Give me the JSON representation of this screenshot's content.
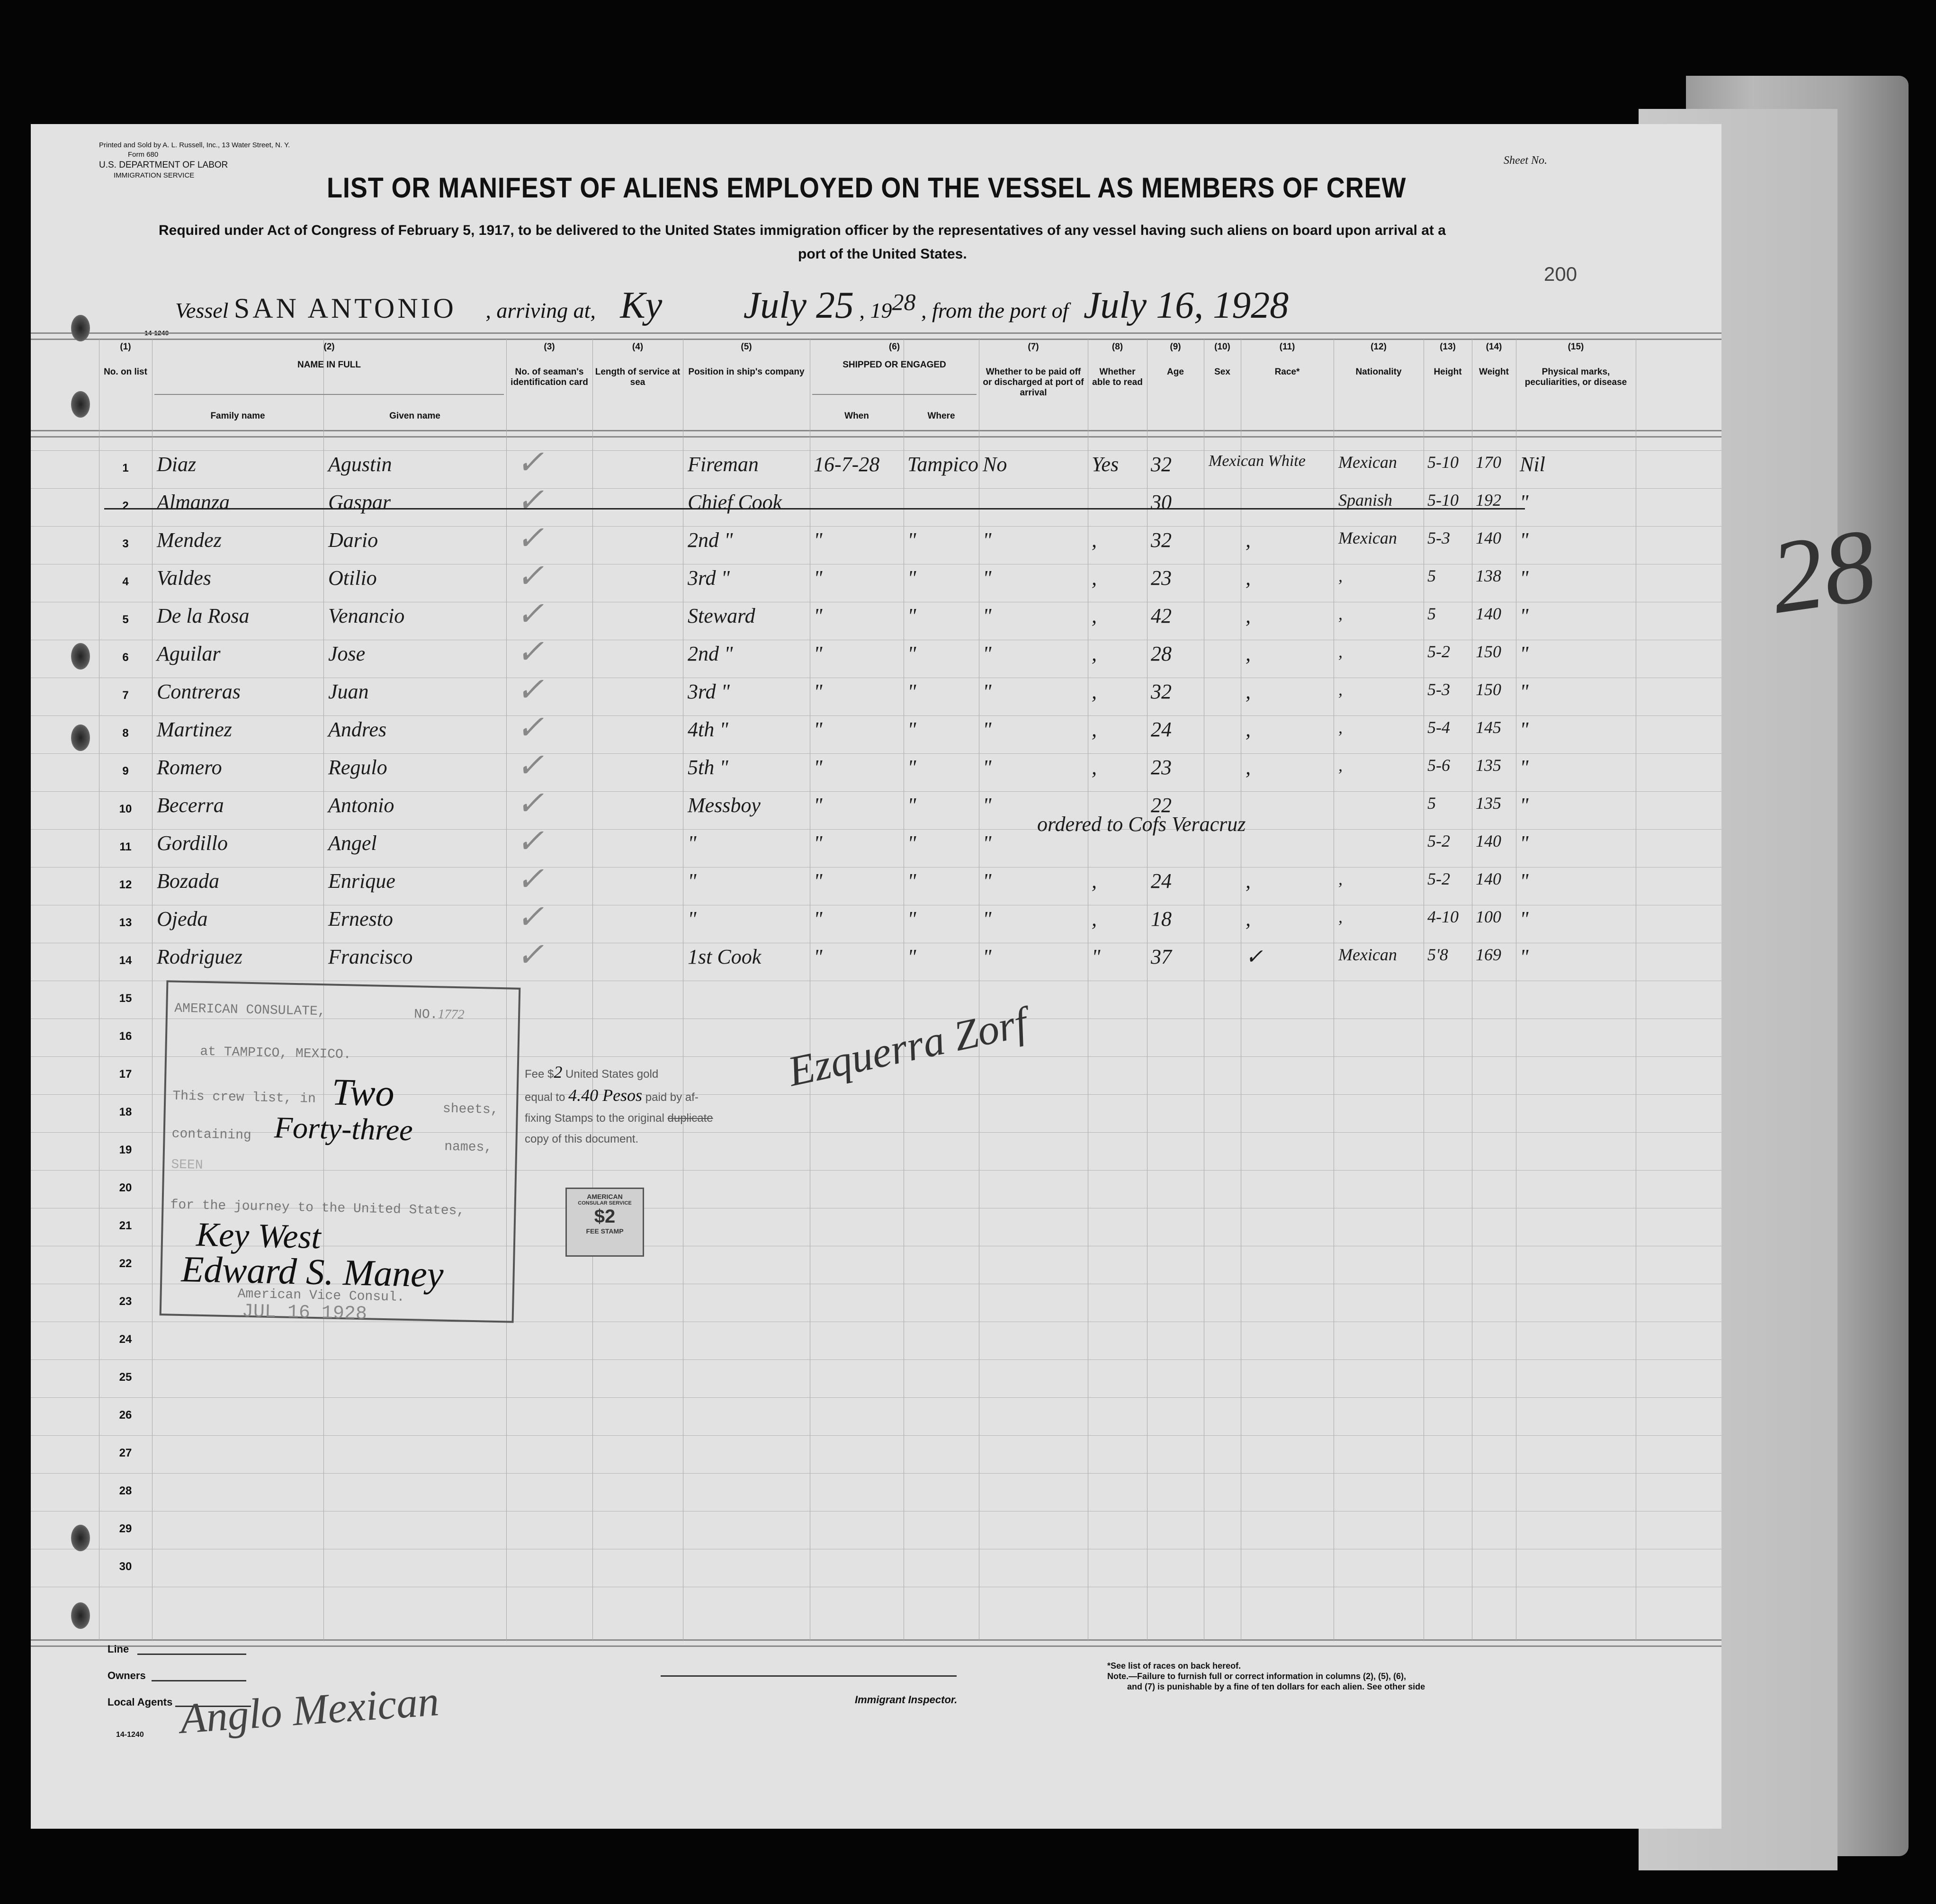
{
  "header": {
    "printer": "Printed and Sold by A. L. Russell, Inc., 13 Water Street, N. Y.",
    "form": "Form 680",
    "department": "U.S. DEPARTMENT OF LABOR",
    "service": "IMMIGRATION SERVICE",
    "sheet_label": "Sheet No.",
    "title": "LIST OR MANIFEST OF ALIENS EMPLOYED ON THE VESSEL AS MEMBERS OF CREW",
    "subtitle_1": "Required under Act of Congress of February 5, 1917, to be delivered to the United States immigration officer by the representatives of any vessel having such aliens on board upon arrival at a",
    "subtitle_2": "port of the United States.",
    "page_number": "200",
    "form_code": "14-1240"
  },
  "vessel_line": {
    "vessel_label": "Vessel",
    "vessel": "SAN ANTONIO",
    "arriving_label": ", arriving at,",
    "arriving_at": "Ky",
    "date": "July 25",
    "year_prefix": ", 19",
    "year": "28",
    "from_label": ", from the port of",
    "from_port": "July 16, 1928"
  },
  "columns": [
    {
      "n": "(1)",
      "label": "No. on list"
    },
    {
      "n": "(2)",
      "label": "NAME IN FULL",
      "sub": [
        "Family name",
        "Given name"
      ]
    },
    {
      "n": "(3)",
      "label": "No. of seaman's identification card"
    },
    {
      "n": "(4)",
      "label": "Length of service at sea"
    },
    {
      "n": "(5)",
      "label": "Position in ship's company"
    },
    {
      "n": "(6)",
      "label": "SHIPPED OR ENGAGED",
      "sub": [
        "When",
        "Where"
      ]
    },
    {
      "n": "(7)",
      "label": "Whether to be paid off or discharged at port of arrival"
    },
    {
      "n": "(8)",
      "label": "Whether able to read"
    },
    {
      "n": "(9)",
      "label": "Age"
    },
    {
      "n": "(10)",
      "label": "Sex"
    },
    {
      "n": "(11)",
      "label": "Race*"
    },
    {
      "n": "(12)",
      "label": "Nationality"
    },
    {
      "n": "(13)",
      "label": "Height"
    },
    {
      "n": "(14)",
      "label": "Weight"
    },
    {
      "n": "(15)",
      "label": "Physical marks, peculiarities, or disease"
    }
  ],
  "crew": [
    {
      "no": "1",
      "family": "Diaz",
      "given": "Agustin",
      "position": "Fireman",
      "when": "16-7-28",
      "where": "Tampico",
      "paid_off": "No",
      "read": "Yes",
      "age": "32",
      "race": "Mexican White",
      "nationality": "Mexican",
      "height": "5-10",
      "weight": "170",
      "marks": "Nil"
    },
    {
      "no": "2",
      "family": "Almanza",
      "given": "Gaspar",
      "position": "Chief Cook",
      "when": "",
      "where": "",
      "paid_off": "",
      "read": "",
      "age": "30",
      "race": "",
      "nationality": "Spanish",
      "height": "5-10",
      "weight": "192",
      "marks": "\"",
      "struck": true
    },
    {
      "no": "3",
      "family": "Mendez",
      "given": "Dario",
      "position": "2nd \"",
      "when": "\"",
      "where": "\"",
      "paid_off": "\"",
      "read": ",",
      "age": "32",
      "race": ",",
      "nationality": "Mexican",
      "height": "5-3",
      "weight": "140",
      "marks": "\""
    },
    {
      "no": "4",
      "family": "Valdes",
      "given": "Otilio",
      "position": "3rd \"",
      "when": "\"",
      "where": "\"",
      "paid_off": "\"",
      "read": ",",
      "age": "23",
      "race": ",",
      "nationality": ",",
      "height": "5",
      "weight": "138",
      "marks": "\""
    },
    {
      "no": "5",
      "family": "De la Rosa",
      "given": "Venancio",
      "position": "Steward",
      "when": "\"",
      "where": "\"",
      "paid_off": "\"",
      "read": ",",
      "age": "42",
      "race": ",",
      "nationality": ",",
      "height": "5",
      "weight": "140",
      "marks": "\""
    },
    {
      "no": "6",
      "family": "Aguilar",
      "given": "Jose",
      "position": "2nd \"",
      "when": "\"",
      "where": "\"",
      "paid_off": "\"",
      "read": ",",
      "age": "28",
      "race": ",",
      "nationality": ",",
      "height": "5-2",
      "weight": "150",
      "marks": "\""
    },
    {
      "no": "7",
      "family": "Contreras",
      "given": "Juan",
      "position": "3rd \"",
      "when": "\"",
      "where": "\"",
      "paid_off": "\"",
      "read": ",",
      "age": "32",
      "race": ",",
      "nationality": ",",
      "height": "5-3",
      "weight": "150",
      "marks": "\""
    },
    {
      "no": "8",
      "family": "Martinez",
      "given": "Andres",
      "position": "4th \"",
      "when": "\"",
      "where": "\"",
      "paid_off": "\"",
      "read": ",",
      "age": "24",
      "race": ",",
      "nationality": ",",
      "height": "5-4",
      "weight": "145",
      "marks": "\""
    },
    {
      "no": "9",
      "family": "Romero",
      "given": "Regulo",
      "position": "5th \"",
      "when": "\"",
      "where": "\"",
      "paid_off": "\"",
      "read": ",",
      "age": "23",
      "race": ",",
      "nationality": ",",
      "height": "5-6",
      "weight": "135",
      "marks": "\""
    },
    {
      "no": "10",
      "family": "Becerra",
      "given": "Antonio",
      "position": "Messboy",
      "when": "\"",
      "where": "\"",
      "paid_off": "\"",
      "read": "",
      "age": "22",
      "race": "",
      "nationality": "",
      "height": "5",
      "weight": "135",
      "marks": "\""
    },
    {
      "no": "11",
      "family": "Gordillo",
      "given": "Angel",
      "position": "\"",
      "when": "\"",
      "where": "\"",
      "paid_off": "\"",
      "read": "",
      "age": "",
      "race": "",
      "nationality": "",
      "height": "5-2",
      "weight": "140",
      "marks": "\"",
      "note": "ordered to Cofs Veracruz"
    },
    {
      "no": "12",
      "family": "Bozada",
      "given": "Enrique",
      "position": "\"",
      "when": "\"",
      "where": "\"",
      "paid_off": "\"",
      "read": ",",
      "age": "24",
      "race": ",",
      "nationality": ",",
      "height": "5-2",
      "weight": "140",
      "marks": "\""
    },
    {
      "no": "13",
      "family": "Ojeda",
      "given": "Ernesto",
      "position": "\"",
      "when": "\"",
      "where": "\"",
      "paid_off": "\"",
      "read": ",",
      "age": "18",
      "race": ",",
      "nationality": ",",
      "height": "4-10",
      "weight": "100",
      "marks": "\""
    },
    {
      "no": "14",
      "family": "Rodriguez",
      "given": "Francisco",
      "position": "1st Cook",
      "when": "\"",
      "where": "\"",
      "paid_off": "\"",
      "read": "\"",
      "age": "37",
      "race": "✓",
      "nationality": "Mexican",
      "height": "5'8",
      "weight": "169",
      "marks": "\""
    }
  ],
  "row_numbers": [
    "1",
    "2",
    "3",
    "4",
    "5",
    "6",
    "7",
    "8",
    "9",
    "10",
    "11",
    "12",
    "13",
    "14",
    "15",
    "16",
    "17",
    "18",
    "19",
    "20",
    "21",
    "22",
    "23",
    "24",
    "25",
    "26",
    "27",
    "28",
    "29",
    "30"
  ],
  "consulate_stamp": {
    "line1": "AMERICAN CONSULATE,",
    "number_label": "NO.",
    "number": "1772",
    "line2": "at TAMPICO, MEXICO.",
    "line3": "This crew list, in",
    "sheets_value": "Two",
    "sheets_label": "sheets,",
    "line4": "containing",
    "names_value": "Forty-three",
    "names_label": "names,",
    "seen": "SEEN",
    "line5": "for the journey to the United States,",
    "port": "Key West",
    "signature": "Edward S. Maney",
    "title": "American Vice Consul.",
    "date": "JUL 16 1928"
  },
  "fee": {
    "line1": "Fee $",
    "amount": "2",
    "line1b": "United States gold",
    "line2": "equal to",
    "pesos": "4.40 Pesos",
    "line2b": "paid by af-",
    "line3": "fixing Stamps to the",
    "original": "original",
    "duplicate": "duplicate",
    "line4": "copy of this document."
  },
  "fee_stamp": {
    "top": "AMERICAN",
    "middle": "CONSULAR SERVICE",
    "value": "$2",
    "bottom": "FEE STAMP"
  },
  "inspector_signature": "Ezquerra Zorf",
  "margin_note": "28",
  "footer": {
    "line_label": "Line",
    "owners_label": "Owners",
    "agents_label": "Local Agents",
    "agents_value": "Anglo Mexican",
    "form_code": "14-1240",
    "inspector_label": "Immigrant Inspector.",
    "note_1": "*See list of races on back hereof.",
    "note_2": "Note.—Failure to furnish full or correct information in columns (2), (5), (6),",
    "note_3": "and (7) is punishable by a fine of ten dollars for each alien.  See other side"
  }
}
